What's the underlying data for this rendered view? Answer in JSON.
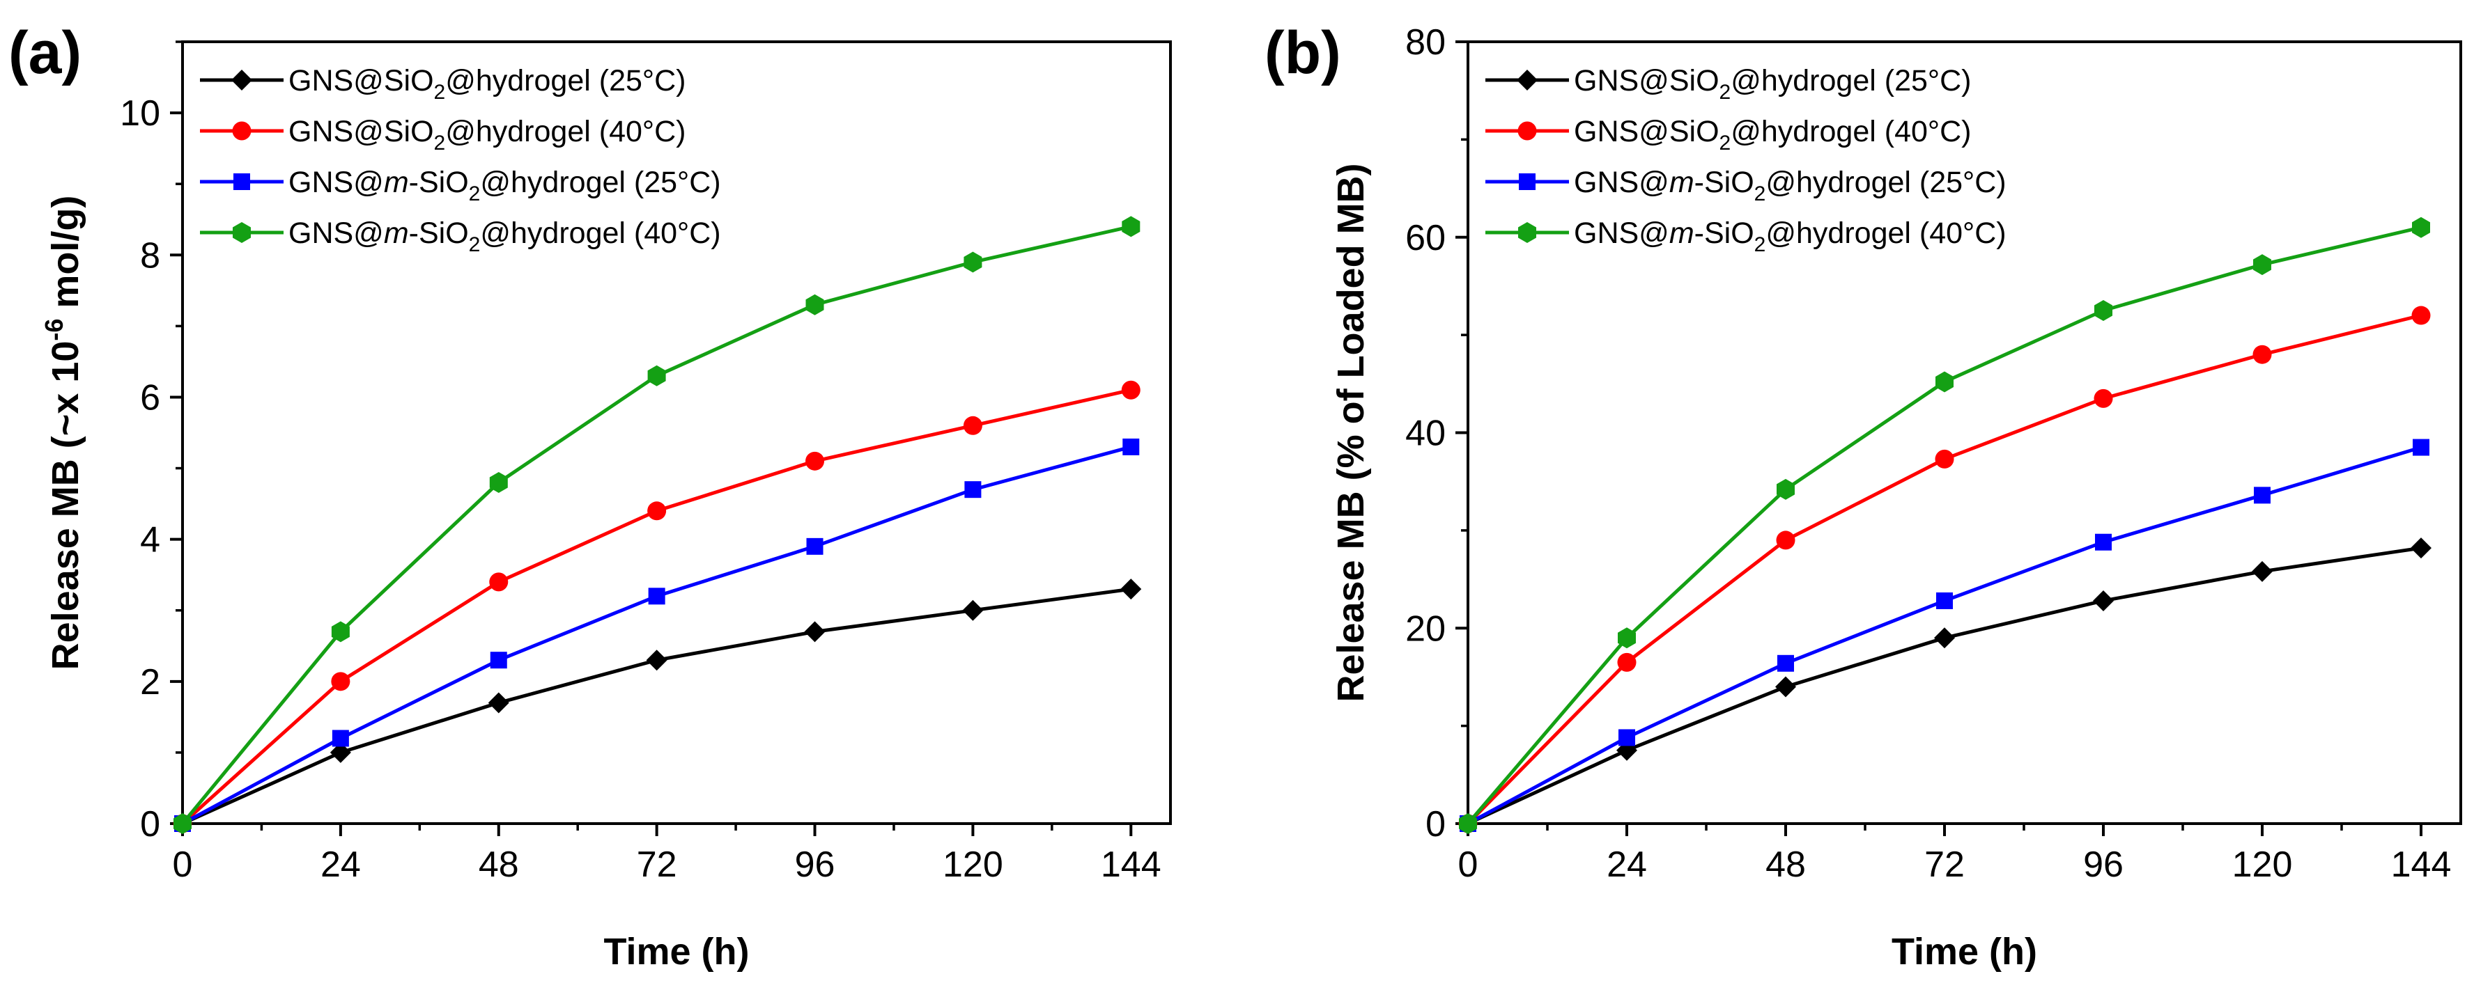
{
  "figure": {
    "panels": [
      {
        "label": "(a)"
      },
      {
        "label": "(b)"
      }
    ]
  },
  "chart_data": [
    {
      "type": "line",
      "panel": "(a)",
      "title": "",
      "xlabel": "Time (h)",
      "ylabel": "Release MB (~x 10⁻⁶ mol/g)",
      "ylabel_parts": [
        "Release MB (~x 10",
        "-6",
        " mol/g)"
      ],
      "xlim": [
        0,
        150
      ],
      "ylim": [
        0,
        11
      ],
      "xticks": [
        0,
        24,
        48,
        72,
        96,
        120,
        144
      ],
      "yticks": [
        0,
        2,
        4,
        6,
        8,
        10
      ],
      "x": [
        0,
        24,
        48,
        72,
        96,
        120,
        144
      ],
      "legend_position": "top-left",
      "series": [
        {
          "name": "GNS@SiO2@hydrogel (25°C)",
          "legend_parts": [
            "GNS@SiO",
            "2",
            "@hydrogel (25°C)"
          ],
          "italic_m": false,
          "color": "#000000",
          "marker": "diamond",
          "values": [
            0,
            1.0,
            1.7,
            2.3,
            2.7,
            3.0,
            3.3
          ]
        },
        {
          "name": "GNS@SiO2@hydrogel (40°C)",
          "legend_parts": [
            "GNS@SiO",
            "2",
            "@hydrogel (40°C)"
          ],
          "italic_m": false,
          "color": "#ff0000",
          "marker": "circle",
          "values": [
            0,
            2.0,
            3.4,
            4.4,
            5.1,
            5.6,
            6.1
          ]
        },
        {
          "name": "GNS@m-SiO2@hydrogel (25°C)",
          "legend_parts": [
            "GNS@",
            "m",
            "-SiO",
            "2",
            "@hydrogel (25°C)"
          ],
          "italic_m": true,
          "color": "#0000ff",
          "marker": "square",
          "values": [
            0,
            1.2,
            2.3,
            3.2,
            3.9,
            4.7,
            5.3
          ]
        },
        {
          "name": "GNS@m-SiO2@hydrogel (40°C)",
          "legend_parts": [
            "GNS@",
            "m",
            "-SiO",
            "2",
            "@hydrogel (40°C)"
          ],
          "italic_m": true,
          "color": "#14a014",
          "marker": "hexagon",
          "values": [
            0,
            2.7,
            4.8,
            6.3,
            7.3,
            7.9,
            8.4
          ]
        }
      ]
    },
    {
      "type": "line",
      "panel": "(b)",
      "title": "",
      "xlabel": "Time (h)",
      "ylabel": "Release MB (% of Loaded MB)",
      "ylabel_parts": [
        "Release MB (% of Loaded MB)"
      ],
      "xlim": [
        0,
        150
      ],
      "ylim": [
        0,
        80
      ],
      "xticks": [
        0,
        24,
        48,
        72,
        96,
        120,
        144
      ],
      "yticks": [
        0,
        20,
        40,
        60,
        80
      ],
      "x": [
        0,
        24,
        48,
        72,
        96,
        120,
        144
      ],
      "legend_position": "top-left",
      "series": [
        {
          "name": "GNS@SiO2@hydrogel (25°C)",
          "legend_parts": [
            "GNS@SiO",
            "2",
            "@hydrogel (25°C)"
          ],
          "italic_m": false,
          "color": "#000000",
          "marker": "diamond",
          "values": [
            0,
            7.5,
            14,
            19,
            22.8,
            25.8,
            28.2
          ]
        },
        {
          "name": "GNS@SiO2@hydrogel (40°C)",
          "legend_parts": [
            "GNS@SiO",
            "2",
            "@hydrogel (40°C)"
          ],
          "italic_m": false,
          "color": "#ff0000",
          "marker": "circle",
          "values": [
            0,
            16.5,
            29,
            37.3,
            43.5,
            48,
            52
          ]
        },
        {
          "name": "GNS@m-SiO2@hydrogel (25°C)",
          "legend_parts": [
            "GNS@",
            "m",
            "-SiO",
            "2",
            "@hydrogel (25°C)"
          ],
          "italic_m": true,
          "color": "#0000ff",
          "marker": "square",
          "values": [
            0,
            8.8,
            16.4,
            22.8,
            28.8,
            33.6,
            38.5
          ]
        },
        {
          "name": "GNS@m-SiO2@hydrogel (40°C)",
          "legend_parts": [
            "GNS@",
            "m",
            "-SiO",
            "2",
            "@hydrogel (40°C)"
          ],
          "italic_m": true,
          "color": "#14a014",
          "marker": "hexagon",
          "values": [
            0,
            19,
            34.2,
            45.2,
            52.5,
            57.2,
            61
          ]
        }
      ]
    }
  ]
}
